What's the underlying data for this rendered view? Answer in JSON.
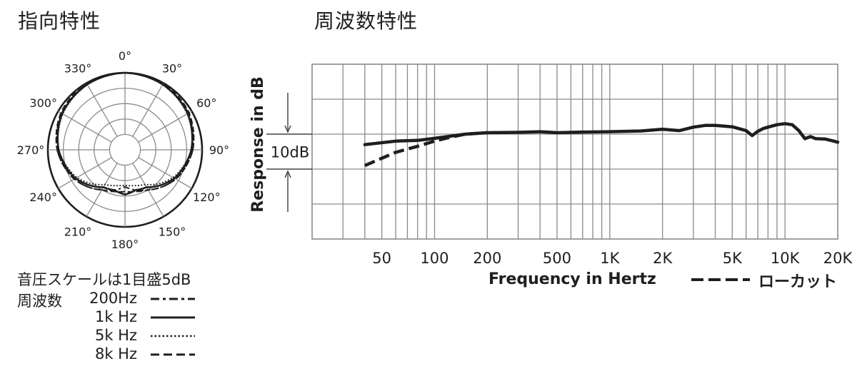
{
  "titles": {
    "polar": "指向特性",
    "frequency": "周波数特性"
  },
  "polar": {
    "angle_labels": [
      "0°",
      "30°",
      "60°",
      "90°",
      "120°",
      "150°",
      "180°",
      "210°",
      "240°",
      "270°",
      "300°",
      "330°"
    ],
    "scale_note": "音圧スケールは1目盛5dB",
    "legend_heading": "周波数",
    "legend": [
      {
        "label": "200Hz",
        "style": "dash-dot"
      },
      {
        "label": "1k Hz",
        "style": "solid"
      },
      {
        "label": "5k Hz",
        "style": "dotted"
      },
      {
        "label": "8k Hz",
        "style": "dashed"
      }
    ]
  },
  "chart_data": [
    {
      "type": "polar",
      "rings": 5,
      "ring_step_db": 5,
      "angle_ticks_deg": [
        0,
        30,
        60,
        90,
        120,
        150,
        180,
        210,
        240,
        270,
        300,
        330
      ],
      "series": [
        {
          "name": "200Hz",
          "style": "dash-dot",
          "angles_deg": [
            0,
            30,
            60,
            90,
            120,
            150,
            165,
            180
          ],
          "levels_db": [
            0,
            -0.4,
            -1.3,
            -3,
            -6,
            -10,
            -11.5,
            -13
          ]
        },
        {
          "name": "1k Hz",
          "style": "solid",
          "angles_deg": [
            0,
            30,
            60,
            90,
            120,
            150,
            165,
            180
          ],
          "levels_db": [
            0,
            -0.5,
            -1.5,
            -3.5,
            -6.5,
            -11,
            -11.5,
            -10.5
          ]
        },
        {
          "name": "5k Hz",
          "style": "dotted",
          "angles_deg": [
            0,
            30,
            60,
            90,
            120,
            150,
            165,
            180
          ],
          "levels_db": [
            0,
            -0.6,
            -1.7,
            -3.5,
            -7,
            -12,
            -13,
            -13.5
          ]
        },
        {
          "name": "8k Hz",
          "style": "dashed",
          "angles_deg": [
            0,
            30,
            60,
            90,
            120,
            150,
            165,
            180
          ],
          "levels_db": [
            0,
            0,
            -1,
            -3,
            -6,
            -10,
            -11,
            -11.5
          ]
        }
      ]
    },
    {
      "type": "line",
      "xlabel": "Frequency in Hertz",
      "ylabel": "Response in dB",
      "x_scale": "log",
      "xlim": [
        20,
        20000
      ],
      "x_tick_labels": [
        {
          "value": 50,
          "label": "50"
        },
        {
          "value": 100,
          "label": "100"
        },
        {
          "value": 200,
          "label": "200"
        },
        {
          "value": 500,
          "label": "500"
        },
        {
          "value": 1000,
          "label": "1K"
        },
        {
          "value": 2000,
          "label": "2K"
        },
        {
          "value": 5000,
          "label": "5K"
        },
        {
          "value": 10000,
          "label": "10K"
        },
        {
          "value": 20000,
          "label": "20K"
        }
      ],
      "ylim": [
        -30,
        20
      ],
      "scale_annotation": "10dB",
      "grid": true,
      "series": [
        {
          "name": "",
          "style": "solid",
          "x": [
            40,
            60,
            80,
            100,
            150,
            200,
            300,
            400,
            500,
            700,
            1000,
            1500,
            2000,
            2500,
            3000,
            3500,
            4000,
            5000,
            6000,
            6500,
            7000,
            7500,
            8000,
            9000,
            10000,
            11000,
            12000,
            13000,
            14000,
            15000,
            17000,
            19000,
            20000
          ],
          "y": [
            -3,
            -2,
            -1.8,
            -1.2,
            0,
            0.4,
            0.5,
            0.7,
            0.4,
            0.6,
            0.7,
            0.9,
            1.4,
            1,
            2,
            2.5,
            2.5,
            2.1,
            1,
            -0.4,
            0.8,
            1.6,
            2,
            2.7,
            3,
            2.7,
            1,
            -1.3,
            -0.7,
            -1.3,
            -1.4,
            -2,
            -2.3
          ]
        },
        {
          "name": "ローカット",
          "style": "dashed",
          "x": [
            40,
            50,
            60,
            80,
            100,
            120,
            150,
            200
          ],
          "y": [
            -9,
            -6.9,
            -5.2,
            -3.5,
            -2,
            -1,
            0,
            0.4
          ]
        }
      ]
    }
  ]
}
